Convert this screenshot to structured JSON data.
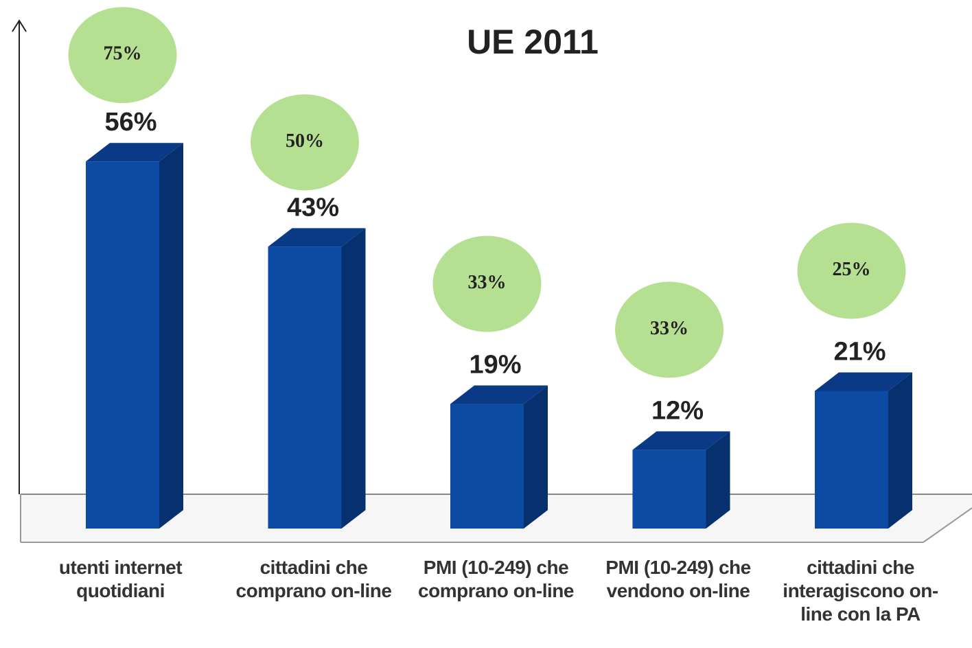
{
  "chart_data": {
    "type": "bar",
    "title": "UE 2011",
    "categories": [
      "utenti internet quotidiani",
      "cittadini che comprano on-line",
      "PMI (10-249) che comprano on-line",
      "PMI (10-249) che vendono on-line",
      "cittadini che interagiscono on-line con la PA"
    ],
    "series": [
      {
        "values": [
          56,
          43,
          19,
          12,
          21
        ],
        "value_labels": [
          "56%",
          "43%",
          "19%",
          "12%",
          "21%"
        ],
        "color": "#0b4ba3"
      },
      {
        "values": [
          75,
          50,
          33,
          33,
          25
        ],
        "value_labels": [
          "75%",
          "50%",
          "33%",
          "33%",
          "25%"
        ],
        "color": "#b6e091"
      }
    ]
  }
}
